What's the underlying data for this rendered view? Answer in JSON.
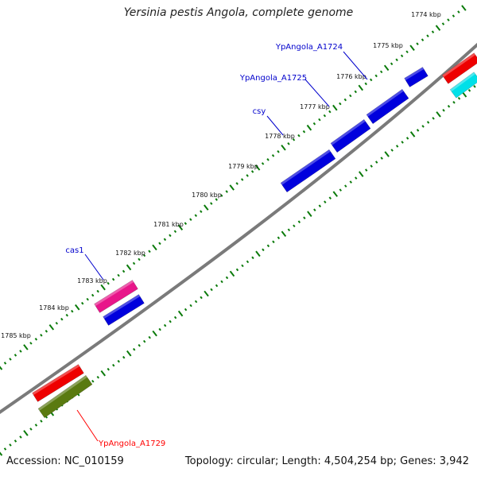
{
  "title": "Yersinia pestis Angola, complete genome",
  "footer": {
    "accession": "Accession: NC_010159",
    "summary": "Topology: circular; Length: 4,504,254 bp; Genes: 3,942"
  },
  "ruler_labels": [
    "1774 kbp",
    "1775 kbp",
    "1776 kbp",
    "1777 kbp",
    "1778 kbp",
    "1779 kbp",
    "1780 kbp",
    "1781 kbp",
    "1782 kbp",
    "1783 kbp",
    "1784 kbp",
    "1785 kbp"
  ],
  "gene_labels": [
    {
      "name": "YpAngola_A1724",
      "color": "#0000cc"
    },
    {
      "name": "YpAngola_A1725",
      "color": "#0000cc"
    },
    {
      "name": "csy",
      "color": "#0000cc"
    },
    {
      "name": "cas1",
      "color": "#0000cc"
    },
    {
      "name": "YpAngola_A1729",
      "color": "#ff0000"
    }
  ],
  "colors": {
    "backbone": "#7a7a7a",
    "ticks": "#0a7a0a",
    "gene_blue": "#0000dd",
    "gene_pink": "#e8168a",
    "gene_red": "#ee0000",
    "gene_olive": "#5a7a10",
    "gene_cyan": "#00e0e8"
  }
}
